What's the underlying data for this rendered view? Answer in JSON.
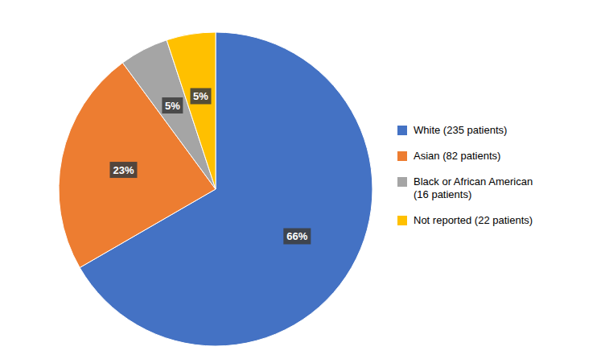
{
  "chart_data": {
    "type": "pie",
    "categories": [
      "White (235 patients)",
      "Asian (82 patients)",
      "Black or African American\n(16 patients)",
      "Not reported (22 patients)"
    ],
    "values": [
      66,
      23,
      5,
      5
    ],
    "value_labels": [
      "66%",
      "23%",
      "5%",
      "5%"
    ],
    "colors": [
      "#4472C4",
      "#ED7D31",
      "#A5A5A5",
      "#FFC000"
    ],
    "data_labels": true,
    "legend": "right"
  }
}
